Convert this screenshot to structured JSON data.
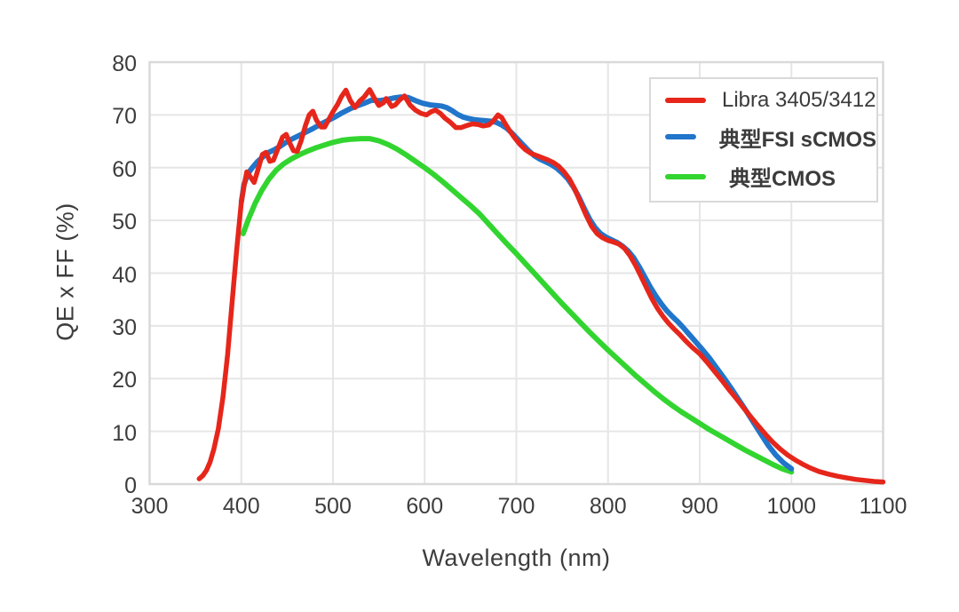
{
  "chart_data": {
    "type": "line",
    "title": "",
    "xlabel": "Wavelength (nm)",
    "ylabel": "QE x FF (%)",
    "xlim": [
      300,
      1100
    ],
    "ylim": [
      0,
      80
    ],
    "x_ticks": [
      300,
      400,
      500,
      600,
      700,
      800,
      900,
      1000,
      1100
    ],
    "y_ticks": [
      0,
      10,
      20,
      30,
      40,
      50,
      60,
      70,
      80
    ],
    "grid": true,
    "legend_position": "upper-right",
    "colors": {
      "grid": "#e6e6e6",
      "frame": "#d9d9d9",
      "text": "#3d3d3d",
      "background": "#ffffff"
    },
    "series": [
      {
        "name": "Libra 3405/3412",
        "color": "#e6261b",
        "points": [
          [
            354,
            1
          ],
          [
            358,
            1.6
          ],
          [
            362,
            2.6
          ],
          [
            366,
            4.2
          ],
          [
            370,
            6.6
          ],
          [
            375,
            10.5
          ],
          [
            380,
            16.5
          ],
          [
            385,
            24.5
          ],
          [
            390,
            34.5
          ],
          [
            395,
            44.5
          ],
          [
            400,
            53.5
          ],
          [
            403,
            56.5
          ],
          [
            406,
            59.2
          ],
          [
            410,
            58.2
          ],
          [
            414,
            57.2
          ],
          [
            418,
            59.5
          ],
          [
            423,
            62.5
          ],
          [
            427,
            62.9
          ],
          [
            431,
            61.2
          ],
          [
            435,
            61.4
          ],
          [
            440,
            63.6
          ],
          [
            445,
            65.8
          ],
          [
            449,
            66.3
          ],
          [
            453,
            64.6
          ],
          [
            457,
            63.2
          ],
          [
            461,
            63.1
          ],
          [
            465,
            65
          ],
          [
            470,
            68
          ],
          [
            474,
            70
          ],
          [
            478,
            70.7
          ],
          [
            482,
            69
          ],
          [
            487,
            67.7
          ],
          [
            491,
            67.7
          ],
          [
            495,
            69
          ],
          [
            500,
            70.6
          ],
          [
            505,
            72
          ],
          [
            509,
            73.4
          ],
          [
            514,
            74.7
          ],
          [
            519,
            72.7
          ],
          [
            524,
            71.4
          ],
          [
            529,
            72.6
          ],
          [
            534,
            73.4
          ],
          [
            540,
            74.8
          ],
          [
            545,
            73.2
          ],
          [
            550,
            71.8
          ],
          [
            555,
            72.3
          ],
          [
            558,
            73.1
          ],
          [
            561,
            72.4
          ],
          [
            564,
            71.6
          ],
          [
            568,
            71.9
          ],
          [
            573,
            72.9
          ],
          [
            578,
            73.6
          ],
          [
            584,
            71.9
          ],
          [
            590,
            70.9
          ],
          [
            596,
            70.3
          ],
          [
            602,
            70
          ],
          [
            607,
            70.6
          ],
          [
            612,
            70.9
          ],
          [
            617,
            70.3
          ],
          [
            622,
            69.4
          ],
          [
            628,
            68.6
          ],
          [
            634,
            67.6
          ],
          [
            640,
            67.6
          ],
          [
            646,
            68
          ],
          [
            652,
            68.3
          ],
          [
            658,
            68.2
          ],
          [
            664,
            67.9
          ],
          [
            670,
            68.1
          ],
          [
            675,
            68.9
          ],
          [
            680,
            70
          ],
          [
            684,
            69.5
          ],
          [
            688,
            68.3
          ],
          [
            693,
            66.9
          ],
          [
            698,
            65.7
          ],
          [
            704,
            64.4
          ],
          [
            710,
            63.4
          ],
          [
            716,
            62.7
          ],
          [
            722,
            62.3
          ],
          [
            728,
            61.9
          ],
          [
            734,
            61.5
          ],
          [
            740,
            61
          ],
          [
            746,
            60.3
          ],
          [
            752,
            59.2
          ],
          [
            758,
            57.8
          ],
          [
            764,
            55.8
          ],
          [
            770,
            53.4
          ],
          [
            776,
            51
          ],
          [
            782,
            48.9
          ],
          [
            788,
            47.5
          ],
          [
            794,
            46.7
          ],
          [
            800,
            46.2
          ],
          [
            806,
            45.9
          ],
          [
            812,
            45.5
          ],
          [
            818,
            44.7
          ],
          [
            824,
            43.3
          ],
          [
            830,
            41.5
          ],
          [
            836,
            39.4
          ],
          [
            842,
            37.2
          ],
          [
            848,
            35.1
          ],
          [
            854,
            33.3
          ],
          [
            860,
            31.8
          ],
          [
            866,
            30.5
          ],
          [
            872,
            29.4
          ],
          [
            878,
            28.4
          ],
          [
            885,
            27.1
          ],
          [
            892,
            25.9
          ],
          [
            900,
            24.7
          ],
          [
            908,
            23.1
          ],
          [
            916,
            21.4
          ],
          [
            924,
            19.7
          ],
          [
            932,
            17.9
          ],
          [
            940,
            16.2
          ],
          [
            948,
            14.4
          ],
          [
            956,
            12.7
          ],
          [
            964,
            11
          ],
          [
            972,
            9.4
          ],
          [
            980,
            7.9
          ],
          [
            988,
            6.6
          ],
          [
            996,
            5.5
          ],
          [
            1004,
            4.6
          ],
          [
            1012,
            3.8
          ],
          [
            1020,
            3.1
          ],
          [
            1030,
            2.4
          ],
          [
            1040,
            1.9
          ],
          [
            1050,
            1.5
          ],
          [
            1060,
            1.2
          ],
          [
            1070,
            0.9
          ],
          [
            1080,
            0.7
          ],
          [
            1090,
            0.5
          ],
          [
            1100,
            0.4
          ]
        ]
      },
      {
        "name": "典型FSI sCMOS",
        "color": "#2175ca",
        "points": [
          [
            400,
            53.5
          ],
          [
            403,
            56.8
          ],
          [
            407,
            58.8
          ],
          [
            412,
            60
          ],
          [
            418,
            61.2
          ],
          [
            424,
            62.1
          ],
          [
            430,
            62.9
          ],
          [
            436,
            63.4
          ],
          [
            442,
            64
          ],
          [
            448,
            64.7
          ],
          [
            455,
            65.4
          ],
          [
            462,
            66
          ],
          [
            470,
            66.7
          ],
          [
            478,
            67.4
          ],
          [
            486,
            68.2
          ],
          [
            494,
            68.9
          ],
          [
            502,
            69.6
          ],
          [
            510,
            70.4
          ],
          [
            518,
            71.1
          ],
          [
            526,
            71.7
          ],
          [
            534,
            72.2
          ],
          [
            542,
            72.8
          ],
          [
            550,
            72.7
          ],
          [
            558,
            72.9
          ],
          [
            566,
            73.2
          ],
          [
            574,
            73.4
          ],
          [
            582,
            73.3
          ],
          [
            590,
            72.7
          ],
          [
            598,
            72.2
          ],
          [
            606,
            71.9
          ],
          [
            612,
            71.8
          ],
          [
            618,
            71.7
          ],
          [
            624,
            71.4
          ],
          [
            630,
            70.8
          ],
          [
            636,
            70.1
          ],
          [
            642,
            69.6
          ],
          [
            648,
            69.3
          ],
          [
            654,
            69.1
          ],
          [
            660,
            69
          ],
          [
            666,
            68.9
          ],
          [
            672,
            68.8
          ],
          [
            678,
            68.6
          ],
          [
            684,
            68.1
          ],
          [
            690,
            67.4
          ],
          [
            696,
            66.4
          ],
          [
            702,
            65.3
          ],
          [
            708,
            64.2
          ],
          [
            714,
            63.1
          ],
          [
            720,
            62.2
          ],
          [
            726,
            61.6
          ],
          [
            732,
            61.1
          ],
          [
            738,
            60.6
          ],
          [
            744,
            59.9
          ],
          [
            750,
            59
          ],
          [
            756,
            57.9
          ],
          [
            762,
            56.4
          ],
          [
            768,
            54.5
          ],
          [
            774,
            52.3
          ],
          [
            780,
            50.2
          ],
          [
            786,
            48.6
          ],
          [
            792,
            47.5
          ],
          [
            798,
            46.8
          ],
          [
            804,
            46.3
          ],
          [
            810,
            45.8
          ],
          [
            816,
            45.1
          ],
          [
            822,
            44.2
          ],
          [
            828,
            42.9
          ],
          [
            834,
            41.2
          ],
          [
            840,
            39.3
          ],
          [
            846,
            37.4
          ],
          [
            852,
            35.7
          ],
          [
            858,
            34.2
          ],
          [
            864,
            32.9
          ],
          [
            870,
            31.8
          ],
          [
            876,
            30.8
          ],
          [
            882,
            29.7
          ],
          [
            889,
            28.3
          ],
          [
            896,
            26.9
          ],
          [
            903,
            25.5
          ],
          [
            911,
            23.8
          ],
          [
            919,
            21.9
          ],
          [
            927,
            20
          ],
          [
            935,
            18
          ],
          [
            943,
            15.9
          ],
          [
            951,
            13.8
          ],
          [
            959,
            11.6
          ],
          [
            967,
            9.4
          ],
          [
            975,
            7.3
          ],
          [
            983,
            5.5
          ],
          [
            991,
            4.1
          ],
          [
            1000,
            2.9
          ]
        ]
      },
      {
        "name": "典型CMOS",
        "color": "#32d52f",
        "points": [
          [
            402,
            47.5
          ],
          [
            408,
            50.3
          ],
          [
            415,
            53.2
          ],
          [
            422,
            55.6
          ],
          [
            430,
            57.8
          ],
          [
            438,
            59.5
          ],
          [
            446,
            60.7
          ],
          [
            455,
            61.7
          ],
          [
            464,
            62.5
          ],
          [
            473,
            63.2
          ],
          [
            482,
            63.8
          ],
          [
            491,
            64.3
          ],
          [
            500,
            64.8
          ],
          [
            510,
            65.2
          ],
          [
            520,
            65.4
          ],
          [
            530,
            65.5
          ],
          [
            540,
            65.5
          ],
          [
            550,
            65.1
          ],
          [
            560,
            64.4
          ],
          [
            570,
            63.5
          ],
          [
            580,
            62.4
          ],
          [
            590,
            61.2
          ],
          [
            600,
            60
          ],
          [
            610,
            58.7
          ],
          [
            620,
            57.3
          ],
          [
            630,
            55.8
          ],
          [
            640,
            54.3
          ],
          [
            650,
            52.8
          ],
          [
            660,
            51.2
          ],
          [
            670,
            49.3
          ],
          [
            680,
            47.4
          ],
          [
            690,
            45.5
          ],
          [
            700,
            43.7
          ],
          [
            710,
            41.8
          ],
          [
            720,
            39.9
          ],
          [
            730,
            38
          ],
          [
            740,
            36.1
          ],
          [
            750,
            34.2
          ],
          [
            760,
            32.4
          ],
          [
            770,
            30.6
          ],
          [
            780,
            28.8
          ],
          [
            790,
            27.1
          ],
          [
            800,
            25.4
          ],
          [
            810,
            23.8
          ],
          [
            820,
            22.2
          ],
          [
            830,
            20.6
          ],
          [
            840,
            19.1
          ],
          [
            850,
            17.6
          ],
          [
            860,
            16.2
          ],
          [
            870,
            14.9
          ],
          [
            880,
            13.7
          ],
          [
            890,
            12.6
          ],
          [
            900,
            11.5
          ],
          [
            910,
            10.4
          ],
          [
            920,
            9.4
          ],
          [
            930,
            8.4
          ],
          [
            940,
            7.4
          ],
          [
            950,
            6.4
          ],
          [
            960,
            5.5
          ],
          [
            970,
            4.6
          ],
          [
            980,
            3.7
          ],
          [
            990,
            2.9
          ],
          [
            1000,
            2.3
          ]
        ]
      }
    ]
  }
}
